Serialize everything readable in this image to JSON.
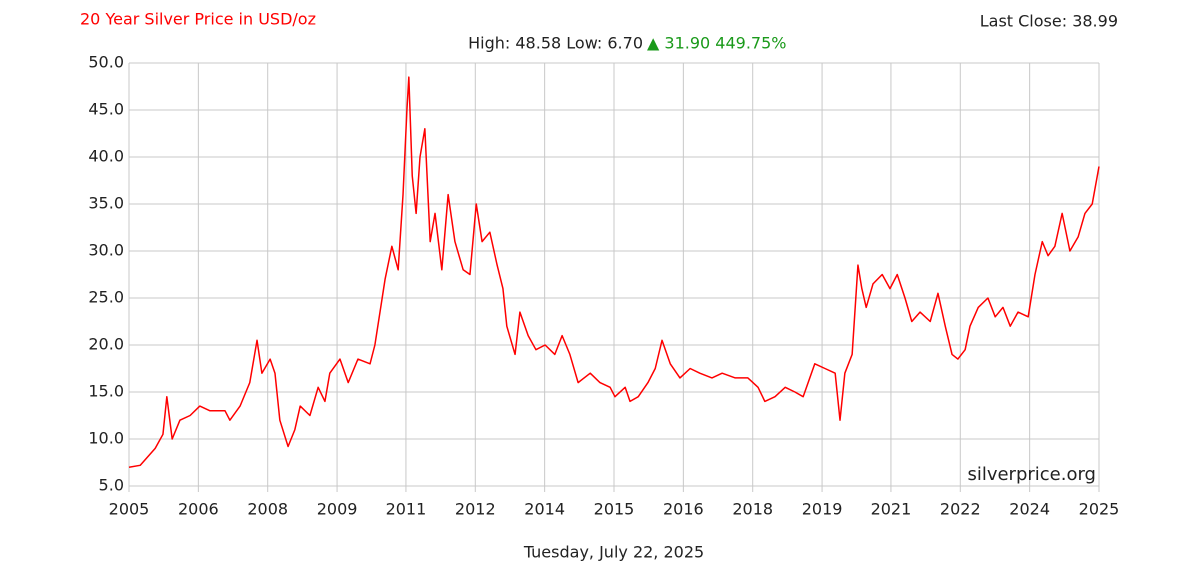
{
  "chart_data": {
    "type": "line",
    "title": "20 Year Silver Price in USD/oz",
    "last_close": "Last Close: 38.99",
    "summary": "High: 48.58 Low: 6.70",
    "change": "▲ 31.90 449.75%",
    "watermark": "silverprice.org",
    "date": "Tuesday, July 22, 2025",
    "color": "#ff0000",
    "grid": true,
    "ylim": [
      5,
      50
    ],
    "yticks": [
      {
        "value": 5,
        "label": "5.0"
      },
      {
        "value": 10,
        "label": "10.0"
      },
      {
        "value": 15,
        "label": "15.0"
      },
      {
        "value": 20,
        "label": "20.0"
      },
      {
        "value": 25,
        "label": "25.0"
      },
      {
        "value": 30,
        "label": "30.0"
      },
      {
        "value": 35,
        "label": "35.0"
      },
      {
        "value": 40,
        "label": "40.0"
      },
      {
        "value": 45,
        "label": "45.0"
      },
      {
        "value": 50,
        "label": "50.0"
      }
    ],
    "xlim": [
      2005.55,
      2025.55
    ],
    "xticks": [
      {
        "value": 2005.55,
        "label": "2005"
      },
      {
        "value": 2006.98,
        "label": "2006"
      },
      {
        "value": 2008.41,
        "label": "2008"
      },
      {
        "value": 2009.84,
        "label": "2009"
      },
      {
        "value": 2011.26,
        "label": "2011"
      },
      {
        "value": 2012.69,
        "label": "2012"
      },
      {
        "value": 2014.12,
        "label": "2014"
      },
      {
        "value": 2015.55,
        "label": "2015"
      },
      {
        "value": 2016.98,
        "label": "2016"
      },
      {
        "value": 2018.41,
        "label": "2018"
      },
      {
        "value": 2019.84,
        "label": "2019"
      },
      {
        "value": 2021.26,
        "label": "2021"
      },
      {
        "value": 2022.69,
        "label": "2022"
      },
      {
        "value": 2024.12,
        "label": "2024"
      },
      {
        "value": 2025.55,
        "label": "2025"
      }
    ],
    "x": [
      2005.55,
      2005.78,
      2006.09,
      2006.25,
      2006.33,
      2006.44,
      2006.6,
      2006.81,
      2007.01,
      2007.22,
      2007.53,
      2007.63,
      2007.84,
      2008.04,
      2008.19,
      2008.29,
      2008.46,
      2008.56,
      2008.66,
      2008.83,
      2008.97,
      2009.08,
      2009.28,
      2009.45,
      2009.59,
      2009.69,
      2009.9,
      2010.07,
      2010.27,
      2010.52,
      2010.62,
      2010.83,
      2010.97,
      2011.1,
      2011.2,
      2011.28,
      2011.32,
      2011.39,
      2011.47,
      2011.55,
      2011.65,
      2011.76,
      2011.86,
      2012.0,
      2012.13,
      2012.27,
      2012.44,
      2012.58,
      2012.71,
      2012.83,
      2012.99,
      2013.14,
      2013.26,
      2013.34,
      2013.51,
      2013.61,
      2013.78,
      2013.94,
      2014.13,
      2014.33,
      2014.48,
      2014.64,
      2014.81,
      2015.06,
      2015.26,
      2015.47,
      2015.57,
      2015.78,
      2015.88,
      2016.05,
      2016.25,
      2016.4,
      2016.54,
      2016.71,
      2016.91,
      2017.12,
      2017.32,
      2017.57,
      2017.78,
      2018.05,
      2018.31,
      2018.52,
      2018.66,
      2018.87,
      2019.08,
      2019.28,
      2019.45,
      2019.69,
      2019.9,
      2020.11,
      2020.21,
      2020.31,
      2020.46,
      2020.58,
      2020.66,
      2020.75,
      2020.89,
      2021.08,
      2021.24,
      2021.39,
      2021.55,
      2021.69,
      2021.86,
      2022.07,
      2022.23,
      2022.38,
      2022.52,
      2022.64,
      2022.79,
      2022.89,
      2023.06,
      2023.26,
      2023.41,
      2023.57,
      2023.72,
      2023.88,
      2024.09,
      2024.23,
      2024.38,
      2024.5,
      2024.64,
      2024.79,
      2024.95,
      2025.12,
      2025.26,
      2025.41,
      2025.55
    ],
    "values": [
      7.0,
      7.2,
      9.0,
      10.5,
      14.5,
      10.0,
      12.0,
      12.5,
      13.5,
      13.0,
      13.0,
      12.0,
      13.5,
      16.0,
      20.5,
      17.0,
      18.5,
      17.0,
      12.0,
      9.2,
      11.0,
      13.5,
      12.5,
      15.5,
      14.0,
      17.0,
      18.5,
      16.0,
      18.5,
      18.0,
      20.0,
      27.0,
      30.5,
      28.0,
      36.0,
      45.0,
      48.5,
      38.0,
      34.0,
      40.0,
      43.0,
      31.0,
      34.0,
      28.0,
      36.0,
      31.0,
      28.0,
      27.5,
      35.0,
      31.0,
      32.0,
      28.5,
      26.0,
      22.0,
      19.0,
      23.5,
      21.0,
      19.5,
      20.0,
      19.0,
      21.0,
      19.0,
      16.0,
      17.0,
      16.0,
      15.5,
      14.5,
      15.5,
      14.0,
      14.5,
      16.0,
      17.5,
      20.5,
      18.0,
      16.5,
      17.5,
      17.0,
      16.5,
      17.0,
      16.5,
      16.5,
      15.5,
      14.0,
      14.5,
      15.5,
      15.0,
      14.5,
      18.0,
      17.5,
      17.0,
      12.0,
      17.0,
      19.0,
      28.5,
      26.0,
      24.0,
      26.5,
      27.5,
      26.0,
      27.5,
      25.0,
      22.5,
      23.5,
      22.5,
      25.5,
      22.0,
      19.0,
      18.5,
      19.5,
      22.0,
      24.0,
      25.0,
      23.0,
      24.0,
      22.0,
      23.5,
      23.0,
      27.5,
      31.0,
      29.5,
      30.5,
      34.0,
      30.0,
      31.5,
      34.0,
      35.0,
      38.99
    ]
  }
}
